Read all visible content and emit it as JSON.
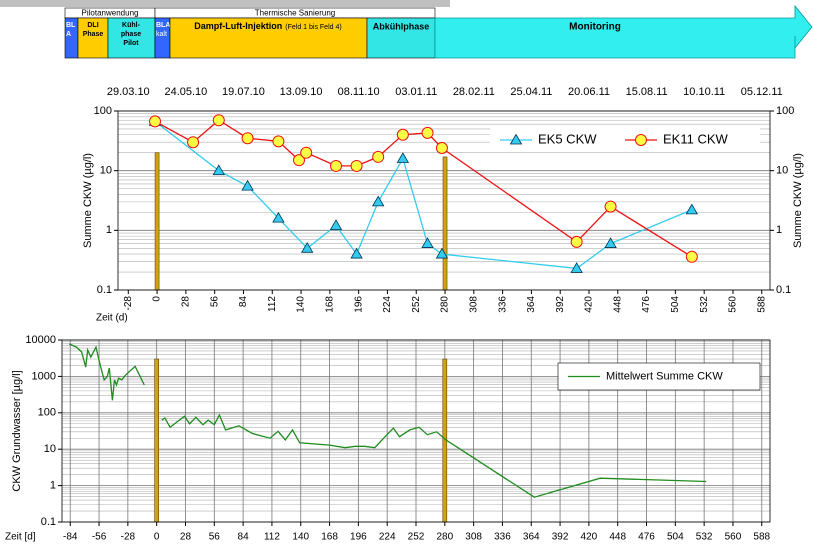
{
  "phases": {
    "groups": [
      "Pilotanwendung",
      "Thermische Sanierung"
    ],
    "bla": [
      "BL",
      "A"
    ],
    "dli": [
      "DLI",
      "Phase"
    ],
    "kuehl": [
      "Kühl-",
      "phase",
      "Pilot"
    ],
    "bla_kalt": [
      "BLA",
      "kalt"
    ],
    "dampf": "Dampf-Luft-Injektion",
    "dampf_note": "(Feld 1 bis Feld 4)",
    "abkuehl": "Abkühlphase",
    "monitoring": "Monitoring"
  },
  "chart_data": [
    {
      "type": "line",
      "y_scale": "log",
      "ylabel": "Summe CKW  (µg/l)",
      "y2label": "Summe CKW  (µg/l)",
      "xlabel": "Zeit (d)",
      "xlim": [
        -38,
        596
      ],
      "xticks": [
        -28,
        0,
        28,
        56,
        84,
        112,
        140,
        168,
        196,
        224,
        252,
        280,
        308,
        336,
        364,
        392,
        420,
        448,
        476,
        504,
        532,
        560,
        588
      ],
      "x2ticks": [
        {
          "value": -28,
          "label": "29.03.10"
        },
        {
          "value": 28,
          "label": "24.05.10"
        },
        {
          "value": 84,
          "label": "19.07.10"
        },
        {
          "value": 140,
          "label": "13.09.10"
        },
        {
          "value": 196,
          "label": "08.11.10"
        },
        {
          "value": 252,
          "label": "03.01.11"
        },
        {
          "value": 308,
          "label": "28.02.11"
        },
        {
          "value": 364,
          "label": "25.04.11"
        },
        {
          "value": 420,
          "label": "20.06.11"
        },
        {
          "value": 476,
          "label": "15.08.11"
        },
        {
          "value": 532,
          "label": "10.10.11"
        },
        {
          "value": 588,
          "label": "05.12.11"
        }
      ],
      "ylim": [
        0.1,
        100
      ],
      "yticks": [
        0.1,
        1,
        10,
        100
      ],
      "y2lim": [
        0.1,
        100
      ],
      "y2ticks": [
        0.1,
        1,
        10,
        100
      ],
      "ygrid": true,
      "xgrid": false,
      "legend": "upper right",
      "bars": {
        "x": [
          0,
          280
        ],
        "values": [
          20,
          17
        ],
        "color": "#d4a017"
      },
      "series": [
        {
          "name": "EK5 CKW",
          "color": "#33ccee",
          "marker": "triangle",
          "marker_fill": "#33ccee",
          "x": [
            -2,
            60,
            88,
            118,
            146,
            174,
            194,
            215,
            239,
            263,
            277,
            408,
            441,
            520
          ],
          "values": [
            67,
            10,
            5.5,
            1.6,
            0.5,
            1.2,
            0.4,
            3,
            16,
            0.6,
            0.4,
            0.23,
            0.6,
            2.2
          ]
        },
        {
          "name": "EK11 CKW",
          "color": "#ee1111",
          "marker": "circle",
          "marker_fill": "#ffff44",
          "x": [
            -2,
            35,
            60,
            88,
            118,
            138,
            145,
            174,
            194,
            215,
            239,
            263,
            277,
            408,
            441,
            520
          ],
          "values": [
            67,
            30,
            70,
            35,
            31,
            15,
            20,
            12,
            12,
            17,
            40,
            43,
            24,
            0.64,
            2.5,
            0.36
          ]
        }
      ]
    },
    {
      "type": "line",
      "y_scale": "log",
      "ylabel": "CKW Grundwasser [µg/l]",
      "xlabel": "Zeit [d]",
      "xlim": [
        -92,
        596
      ],
      "xticks": [
        -84,
        -56,
        -28,
        0,
        28,
        56,
        84,
        112,
        140,
        168,
        196,
        224,
        252,
        280,
        308,
        336,
        364,
        392,
        420,
        448,
        476,
        504,
        532,
        560,
        588
      ],
      "ylim": [
        0.1,
        10000
      ],
      "yticks": [
        0.1,
        1,
        10,
        100,
        1000,
        10000
      ],
      "ygrid": true,
      "xgrid": true,
      "legend": "upper right",
      "bars": {
        "x": [
          0,
          280
        ],
        "values": [
          3000,
          3000
        ],
        "color": "#d4a017"
      },
      "series": [
        {
          "name": "Mittelwert Summe CKW",
          "color": "#1e8c1e",
          "marker": "none",
          "x": [
            -85,
            -78,
            -73,
            -69,
            -67,
            -64,
            -59,
            -56,
            -53,
            -51,
            -48,
            -46,
            -43,
            -41,
            -39,
            -37,
            -34,
            -30,
            -21,
            -12,
            null,
            5,
            8,
            13,
            22,
            27,
            32,
            38,
            45,
            50,
            56,
            61,
            67,
            80,
            93,
            110,
            118,
            125,
            132,
            139,
            168,
            183,
            193,
            202,
            212,
            222,
            230,
            236,
            246,
            255,
            263,
            272,
            281,
            295,
            367,
            431,
            534
          ],
          "values": [
            7800,
            6400,
            4700,
            1800,
            5300,
            3400,
            6400,
            2800,
            1300,
            800,
            1000,
            1700,
            220,
            800,
            580,
            900,
            800,
            1100,
            1900,
            580,
            null,
            63,
            72,
            40,
            63,
            80,
            50,
            75,
            47,
            63,
            47,
            87,
            34,
            44,
            27,
            20,
            31,
            18,
            34,
            15,
            13,
            11,
            12,
            12,
            11,
            22,
            38,
            22,
            34,
            40,
            25,
            30,
            18,
            10,
            0.48,
            1.6,
            1.3
          ]
        }
      ]
    }
  ]
}
